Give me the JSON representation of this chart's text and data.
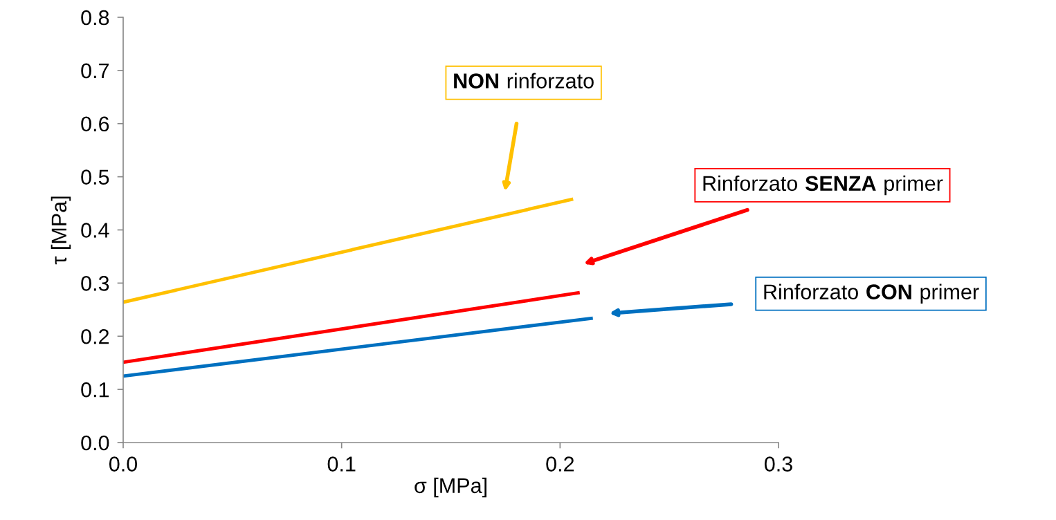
{
  "chart_data": {
    "type": "line",
    "xlabel": "σ [MPa]",
    "ylabel": "τ [MPa]",
    "xlim": [
      0,
      0.3
    ],
    "xticks": [
      {
        "value": 0,
        "label": "0.0"
      },
      0.1,
      0.2,
      0.3
    ],
    "ylim": [
      0,
      0.8
    ],
    "yticks": [
      {
        "value": 0,
        "label": "0.0"
      },
      0.1,
      0.2,
      0.3,
      0.4,
      0.5,
      0.6,
      0.7,
      0.8
    ],
    "grid": false,
    "legend": false,
    "marker": "none",
    "line_style": "solid",
    "series": [
      {
        "color": "#ffc000",
        "x": [
          0,
          0.206
        ],
        "values": [
          0.264,
          0.458
        ]
      },
      {
        "color": "#ff0000",
        "x": [
          0,
          0.209
        ],
        "values": [
          0.151,
          0.282
        ]
      },
      {
        "color": "#0070c0",
        "x": [
          0,
          0.215
        ],
        "values": [
          0.125,
          0.234
        ]
      }
    ],
    "annotations": [
      "NON rinforzato",
      "Rinforzato SENZA primer",
      "Rinforzato CON primer"
    ]
  }
}
